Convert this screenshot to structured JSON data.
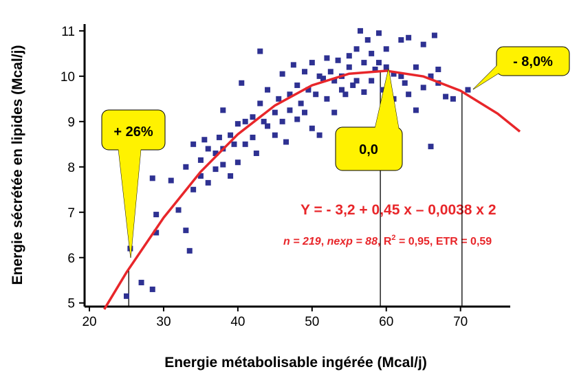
{
  "chart_data": {
    "type": "scatter",
    "x_label": "Energie métabolisable ingérée (Mcal/j)",
    "y_label": "Energie sécrétée en lipides (Mcal/j)",
    "xlim": [
      19.35,
      76.7
    ],
    "xticks": [
      20,
      30,
      40,
      50,
      60,
      70
    ],
    "ylim": [
      4.92,
      11.15
    ],
    "yticks": [
      5,
      6,
      7,
      8,
      9,
      10,
      11
    ],
    "series": [
      {
        "type": "scatter",
        "color": "#2e3192",
        "x": [
          25.5,
          25,
          28.5,
          27,
          28.5,
          29,
          29,
          31,
          32,
          33,
          33.5,
          33,
          34,
          34,
          35,
          35,
          35.5,
          36,
          36,
          37,
          37,
          37.5,
          38,
          38,
          38,
          39,
          39,
          39.5,
          40,
          40,
          40.5,
          41,
          41,
          42,
          42,
          42.5,
          43,
          43,
          43.5,
          44,
          44,
          45,
          45,
          45.5,
          46,
          46,
          46.5,
          47,
          47,
          47.5,
          48,
          48,
          48.5,
          49,
          49,
          49.5,
          50,
          50,
          50.5,
          51,
          51,
          51.5,
          52,
          52,
          52.5,
          53,
          53,
          53.5,
          54,
          54,
          54.5,
          55,
          55,
          55.5,
          56,
          56,
          56.5,
          57,
          57,
          57.5,
          58,
          58,
          58.5,
          59,
          59,
          59.5,
          60,
          60,
          61,
          61,
          62,
          62,
          62.5,
          63,
          63,
          64,
          64,
          65,
          65,
          66,
          66,
          66.5,
          67,
          67,
          68,
          69,
          71
        ],
        "values": [
          6.2,
          5.15,
          5.3,
          5.45,
          7.75,
          6.95,
          6.55,
          7.7,
          7.05,
          6.6,
          6.15,
          8,
          7.5,
          8.5,
          7.8,
          8.15,
          8.6,
          7.65,
          8.4,
          8.3,
          7.95,
          8.65,
          8.4,
          8.05,
          9.25,
          8.7,
          7.8,
          8.5,
          8.95,
          8.1,
          9.85,
          8.5,
          9.0,
          8.65,
          9.1,
          8.3,
          10.55,
          9.4,
          9.0,
          8.9,
          9.7,
          9.2,
          8.7,
          9.5,
          10.05,
          9.0,
          8.55,
          9.6,
          9.25,
          10.25,
          9.05,
          9.8,
          9.4,
          10.1,
          9.2,
          9.7,
          10.3,
          8.85,
          9.6,
          10.0,
          8.7,
          9.95,
          10.4,
          9.5,
          10.1,
          9.2,
          9.9,
          10.35,
          9.7,
          10.0,
          9.6,
          10.45,
          10.2,
          9.8,
          10.6,
          9.9,
          11.0,
          10.3,
          9.65,
          10.8,
          10.5,
          9.9,
          10.15,
          10.95,
          10.3,
          9.7,
          10.6,
          10.2,
          10.05,
          9.5,
          10.8,
          10.0,
          9.85,
          10.85,
          9.6,
          9.25,
          10.2,
          9.75,
          10.7,
          8.45,
          10.0,
          10.9,
          9.85,
          10.15,
          9.55,
          9.5,
          9.7
        ]
      },
      {
        "type": "line",
        "color": "#e8262a",
        "x": [
          22,
          25,
          30,
          35,
          40,
          45,
          50,
          55,
          60,
          65,
          70,
          75,
          78
        ],
        "values": [
          4.86,
          5.675,
          6.88,
          7.895,
          8.72,
          9.355,
          9.8,
          10.055,
          10.12,
          9.995,
          9.68,
          9.175,
          8.78
        ]
      }
    ],
    "reference_lines": [
      {
        "x": 25.3,
        "y": 5.75
      },
      {
        "x": 59.2,
        "y": 10.12
      },
      {
        "x": 70.2,
        "y": 9.67
      }
    ],
    "callouts": [
      "+ 26%",
      "0,0",
      "- 8,0%"
    ],
    "equation": "Y = - 3,2 + 0,45 x – 0,0038 x 2",
    "stats": [
      "n = 219",
      ", ",
      "nexp = 88",
      ", R",
      "2",
      " = 0,95, ETR = 0,59"
    ]
  }
}
